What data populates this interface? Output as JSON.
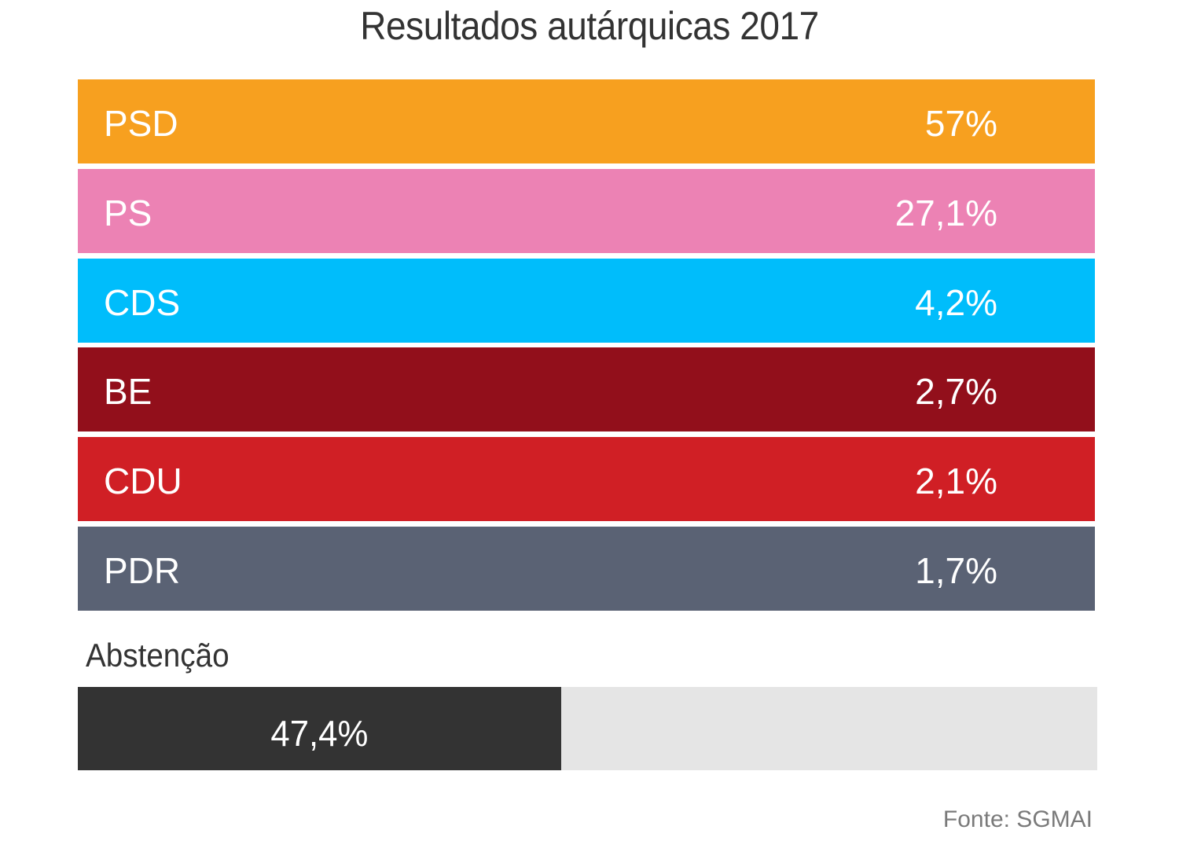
{
  "chart_data": {
    "type": "table",
    "title": "Resultados autárquicas 2017",
    "rows": [
      {
        "party": "PSD",
        "value": 57.0,
        "display": "57%",
        "color": "#f7a01f"
      },
      {
        "party": "PS",
        "value": 27.1,
        "display": "27,1%",
        "color": "#ec82b4"
      },
      {
        "party": "CDS",
        "value": 4.2,
        "display": "4,2%",
        "color": "#00bdfb"
      },
      {
        "party": "BE",
        "value": 2.7,
        "display": "2,7%",
        "color": "#920f1b"
      },
      {
        "party": "CDU",
        "value": 2.1,
        "display": "2,1%",
        "color": "#d01f25"
      },
      {
        "party": "PDR",
        "value": 1.7,
        "display": "1,7%",
        "color": "#5a6274"
      }
    ],
    "abstention": {
      "label": "Abstenção",
      "value": 47.4,
      "display": "47,4%",
      "fill_color": "#333333",
      "track_color": "#e5e5e5",
      "max": 100
    },
    "source": "Fonte: SGMAI"
  }
}
